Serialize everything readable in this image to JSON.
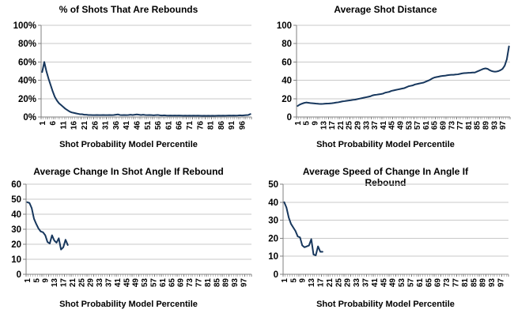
{
  "colors": {
    "line": "#17375D",
    "grid": "#C9C9C9",
    "axis": "#808080",
    "text": "#000000",
    "background": "#FFFFFF"
  },
  "chart_data": [
    {
      "type": "line",
      "title": "% of Shots That Are Rebounds",
      "xlabel": "Shot Probability Model Percentile",
      "ylabel": "",
      "ylim": [
        0,
        100
      ],
      "y_step": 20,
      "y_tick_labels": [
        "0%",
        "20%",
        "40%",
        "60%",
        "80%",
        "100%"
      ],
      "x_categories_count": 100,
      "x_tick_start": 1,
      "x_tick_step": 5,
      "x_tick_labels": [
        "1",
        "6",
        "11",
        "16",
        "21",
        "26",
        "31",
        "36",
        "41",
        "46",
        "51",
        "56",
        "61",
        "66",
        "71",
        "76",
        "81",
        "86",
        "91",
        "96"
      ],
      "grid": true,
      "legend": "none",
      "values": [
        49,
        60,
        50,
        42,
        35,
        28,
        22,
        18,
        15,
        13,
        11,
        9,
        7.5,
        6,
        5,
        4.5,
        4,
        3.5,
        3,
        3,
        2.5,
        2.5,
        2.2,
        2.2,
        2,
        2,
        2.2,
        2,
        2,
        2.2,
        2,
        2,
        2.2,
        2,
        2.2,
        2.5,
        2.8,
        2.2,
        2,
        2.2,
        2,
        2.2,
        2.5,
        2.2,
        2.5,
        2.8,
        2.5,
        2.2,
        2.5,
        2.2,
        2,
        2.2,
        2,
        1.8,
        2,
        2.2,
        1.8,
        1.6,
        1.8,
        1.6,
        1.5,
        1.6,
        1.5,
        1.6,
        1.5,
        1.6,
        1.5,
        1.4,
        1.5,
        1.4,
        1.5,
        1.4,
        1.5,
        1.4,
        1.5,
        1.4,
        1.3,
        1.4,
        1.3,
        1.4,
        1.3,
        1.4,
        1.3,
        1.4,
        1.5,
        1.4,
        1.5,
        1.4,
        1.5,
        1.6,
        1.5,
        1.6,
        1.5,
        1.6,
        1.8,
        1.6,
        1.8,
        2,
        2.2,
        3.2
      ]
    },
    {
      "type": "line",
      "title": "Average Shot Distance",
      "xlabel": "Shot Probability Model Percentile",
      "ylabel": "",
      "ylim": [
        0,
        100
      ],
      "y_step": 20,
      "y_tick_labels": [
        "0",
        "20",
        "40",
        "60",
        "80",
        "100"
      ],
      "x_categories_count": 100,
      "x_tick_start": 1,
      "x_tick_step": 4,
      "x_tick_labels": [
        "1",
        "5",
        "9",
        "13",
        "17",
        "21",
        "25",
        "29",
        "33",
        "37",
        "41",
        "45",
        "49",
        "53",
        "57",
        "61",
        "65",
        "69",
        "73",
        "77",
        "81",
        "85",
        "89",
        "93",
        "97"
      ],
      "grid": true,
      "legend": "none",
      "values": [
        12,
        13.5,
        14.5,
        15.3,
        15.8,
        15.5,
        15.2,
        15,
        14.8,
        14.5,
        14.3,
        14.2,
        14.3,
        14.5,
        14.6,
        14.8,
        15,
        15.3,
        15.7,
        16,
        16.5,
        17,
        17.3,
        17.7,
        18,
        18.3,
        18.7,
        19,
        19.5,
        20,
        20.5,
        21,
        21.5,
        22,
        22.5,
        23.5,
        24,
        24.3,
        24.7,
        25,
        25.5,
        26.5,
        27,
        27.5,
        28.5,
        29,
        29.5,
        30,
        30.5,
        31,
        31.5,
        32.5,
        33.5,
        34,
        34.5,
        35.5,
        36,
        36.5,
        37,
        37.5,
        38.5,
        39.5,
        40.5,
        42,
        43,
        43.5,
        44,
        44.5,
        44.8,
        45,
        45.5,
        45.8,
        46,
        46,
        46.3,
        46.5,
        47,
        47.5,
        47.8,
        48,
        48.2,
        48.3,
        48.5,
        48.5,
        49.5,
        50.5,
        51.5,
        52.5,
        53,
        52.5,
        51,
        50,
        49.5,
        49.5,
        50,
        51,
        52.5,
        56,
        63,
        77
      ]
    },
    {
      "type": "line",
      "title": "Average Change In Shot Angle If Rebound",
      "xlabel": "Shot Probability Model Percentile",
      "ylabel": "",
      "ylim": [
        0,
        60
      ],
      "y_step": 10,
      "y_tick_labels": [
        "0",
        "10",
        "20",
        "30",
        "40",
        "50",
        "60"
      ],
      "x_categories_count": 100,
      "x_tick_start": 1,
      "x_tick_step": 4,
      "x_tick_labels": [
        "1",
        "5",
        "9",
        "13",
        "17",
        "21",
        "25",
        "29",
        "33",
        "37",
        "41",
        "45",
        "49",
        "53",
        "57",
        "61",
        "65",
        "69",
        "73",
        "77",
        "81",
        "85",
        "89",
        "93",
        "97"
      ],
      "grid": true,
      "legend": "none",
      "values": [
        48,
        47.5,
        44,
        37,
        33.5,
        30.5,
        28.5,
        28,
        26,
        21.5,
        20.5,
        26,
        22.5,
        21,
        24,
        16.5,
        18,
        23,
        19.5
      ]
    },
    {
      "type": "line",
      "title": "Average Speed of Change In Angle If Rebound",
      "xlabel": "Shot Probability Model Percentile",
      "ylabel": "",
      "ylim": [
        0,
        50
      ],
      "y_step": 10,
      "y_tick_labels": [
        "0",
        "10",
        "20",
        "30",
        "40",
        "50"
      ],
      "x_categories_count": 100,
      "x_tick_start": 1,
      "x_tick_step": 4,
      "x_tick_labels": [
        "1",
        "5",
        "9",
        "13",
        "17",
        "21",
        "25",
        "29",
        "33",
        "37",
        "41",
        "45",
        "49",
        "53",
        "57",
        "61",
        "65",
        "69",
        "73",
        "77",
        "81",
        "85",
        "89",
        "93",
        "97"
      ],
      "grid": true,
      "legend": "none",
      "values": [
        40,
        37,
        31.5,
        28,
        26,
        24,
        21,
        20.5,
        16,
        15,
        15.5,
        16,
        19.5,
        11,
        10.5,
        15.5,
        12.5,
        12.5
      ]
    }
  ]
}
